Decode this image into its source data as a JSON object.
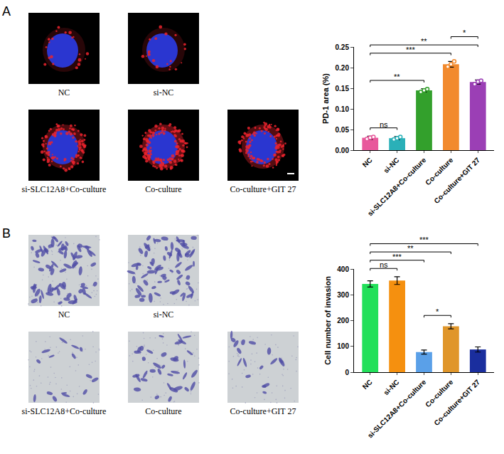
{
  "chart_data": [
    {
      "type": "bar",
      "panel": "A",
      "y_label": "PD-1 area (%)",
      "categories": [
        "NC",
        "si-NC",
        "si-SLC12A8+Co-culture",
        "Co-culture",
        "Co-culture+GIT 27"
      ],
      "values": [
        0.03,
        0.029,
        0.145,
        0.208,
        0.165
      ],
      "errors": [
        0.004,
        0.004,
        0.004,
        0.007,
        0.005
      ],
      "points": [
        [
          0.027,
          0.03,
          0.032
        ],
        [
          0.026,
          0.029,
          0.032
        ],
        [
          0.141,
          0.145,
          0.148
        ],
        [
          0.202,
          0.208,
          0.215
        ],
        [
          0.16,
          0.166,
          0.168
        ]
      ],
      "colors": [
        "#e8589b",
        "#2ab0b8",
        "#33a02c",
        "#f28a2e",
        "#9b3fb5"
      ],
      "ylim": [
        0,
        0.25
      ],
      "yticks": [
        {
          "value": 0,
          "label": "0.00"
        },
        {
          "value": 0.05,
          "label": "0.05"
        },
        {
          "value": 0.1,
          "label": "0.10"
        },
        {
          "value": 0.15,
          "label": "0.15"
        },
        {
          "value": 0.2,
          "label": "0.20"
        },
        {
          "value": 0.25,
          "label": "0.25"
        }
      ],
      "grid": false,
      "brackets": [
        {
          "from": "NC",
          "to": "si-NC",
          "text": "ns"
        },
        {
          "from": "NC",
          "to": "si-SLC12A8+Co-culture",
          "text": "**"
        },
        {
          "from": "NC",
          "to": "Co-culture",
          "text": "***"
        },
        {
          "from": "NC",
          "to": "Co-culture+GIT 27",
          "text": "**"
        },
        {
          "from": "Co-culture",
          "to": "Co-culture+GIT 27",
          "text": "*"
        }
      ]
    },
    {
      "type": "bar",
      "panel": "B",
      "y_label": "Cell number of invasion",
      "categories": [
        "NC",
        "si-NC",
        "si-SLC12A8+Co-culture",
        "Co-culture",
        "Co-culture+GIT 27"
      ],
      "values": [
        342,
        355,
        78,
        178,
        88
      ],
      "errors": [
        12,
        15,
        8,
        10,
        10
      ],
      "colors": [
        "#22e05a",
        "#f5900f",
        "#5aa0e8",
        "#e0962a",
        "#1a2e9e"
      ],
      "ylim": [
        0,
        400
      ],
      "yticks": [
        0,
        100,
        200,
        300,
        400
      ],
      "grid": false,
      "brackets": [
        {
          "from": "NC",
          "to": "si-NC",
          "text": "ns"
        },
        {
          "from": "si-SLC12A8+Co-culture",
          "to": "Co-culture",
          "text": "*"
        },
        {
          "from": "NC",
          "to": "si-SLC12A8+Co-culture",
          "text": "***"
        },
        {
          "from": "NC",
          "to": "Co-culture",
          "text": "**"
        },
        {
          "from": "NC",
          "to": "Co-culture+GIT 27",
          "text": "***"
        }
      ]
    }
  ]
}
